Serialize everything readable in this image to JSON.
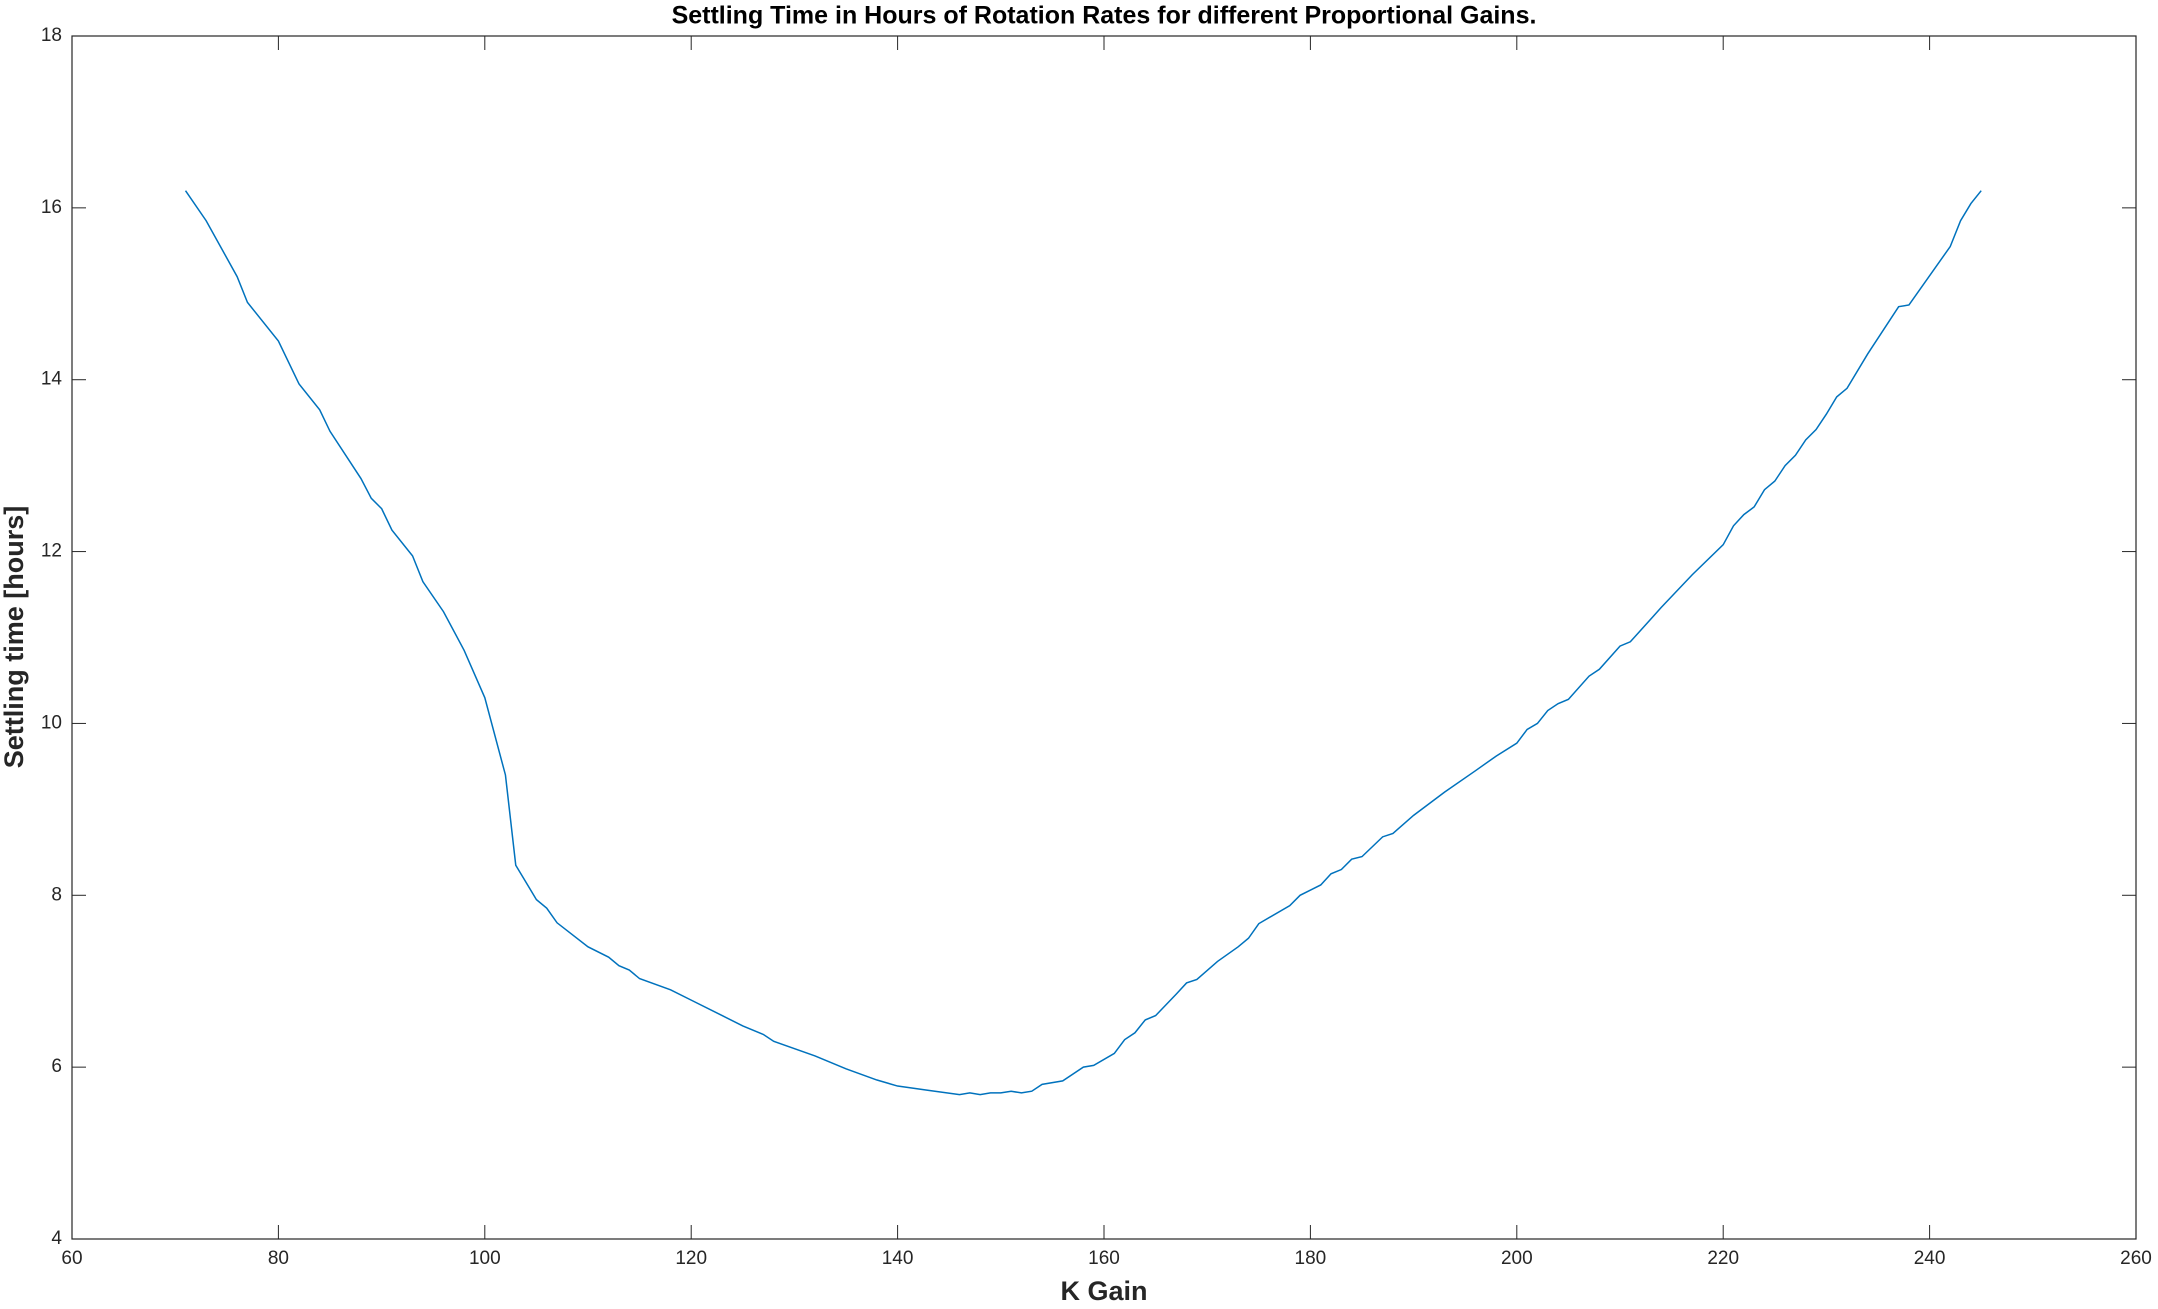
{
  "chart_data": {
    "type": "line",
    "title": "Settling Time in Hours of Rotation Rates for different Proportional Gains.",
    "xlabel": "K Gain",
    "ylabel": "Settling time [hours]",
    "xlim": [
      60,
      260
    ],
    "xticks": [
      60,
      80,
      100,
      120,
      140,
      160,
      180,
      200,
      220,
      240,
      260
    ],
    "ylim": [
      4,
      18
    ],
    "yticks": [
      4,
      6,
      8,
      10,
      12,
      14,
      16,
      18
    ],
    "grid": false,
    "series": [
      {
        "color": "#0072bd",
        "x": [
          71,
          73,
          76,
          77,
          80,
          82,
          84,
          85,
          88,
          89,
          90,
          91,
          93,
          94,
          96,
          98,
          100,
          102,
          103,
          105,
          106,
          107,
          110,
          112,
          113,
          114,
          115,
          118,
          120,
          123,
          125,
          127,
          128,
          132,
          135,
          138,
          140,
          143,
          146,
          147,
          148,
          149,
          150,
          151,
          152,
          153,
          154,
          156,
          158,
          159,
          161,
          162,
          163,
          164,
          165,
          167,
          168,
          169,
          171,
          173,
          174,
          175,
          178,
          179,
          181,
          182,
          183,
          184,
          185,
          187,
          188,
          190,
          193,
          196,
          198,
          200,
          201,
          202,
          203,
          204,
          205,
          207,
          208,
          210,
          211,
          214,
          217,
          220,
          221,
          222,
          223,
          224,
          225,
          226,
          227,
          228,
          229,
          230,
          231,
          232,
          234,
          237,
          238,
          242,
          243,
          244,
          245
        ],
        "values": [
          16.2,
          15.85,
          15.2,
          14.9,
          14.45,
          13.95,
          13.65,
          13.4,
          12.85,
          12.62,
          12.5,
          12.25,
          11.95,
          11.65,
          11.3,
          10.85,
          10.3,
          9.4,
          8.35,
          7.95,
          7.85,
          7.68,
          7.4,
          7.28,
          7.18,
          7.13,
          7.03,
          6.9,
          6.78,
          6.6,
          6.48,
          6.38,
          6.3,
          6.13,
          5.98,
          5.85,
          5.78,
          5.73,
          5.68,
          5.7,
          5.68,
          5.7,
          5.7,
          5.72,
          5.7,
          5.72,
          5.8,
          5.84,
          6.0,
          6.02,
          6.16,
          6.32,
          6.4,
          6.55,
          6.6,
          6.85,
          6.98,
          7.02,
          7.23,
          7.4,
          7.5,
          7.67,
          7.88,
          8.0,
          8.12,
          8.25,
          8.3,
          8.42,
          8.45,
          8.68,
          8.72,
          8.93,
          9.2,
          9.45,
          9.62,
          9.77,
          9.93,
          10.0,
          10.15,
          10.23,
          10.28,
          10.55,
          10.63,
          10.9,
          10.95,
          11.35,
          11.73,
          12.08,
          12.3,
          12.43,
          12.52,
          12.72,
          12.82,
          13.0,
          13.12,
          13.3,
          13.42,
          13.6,
          13.8,
          13.9,
          14.3,
          14.85,
          14.87,
          15.55,
          15.85,
          16.05,
          16.2
        ]
      }
    ]
  }
}
